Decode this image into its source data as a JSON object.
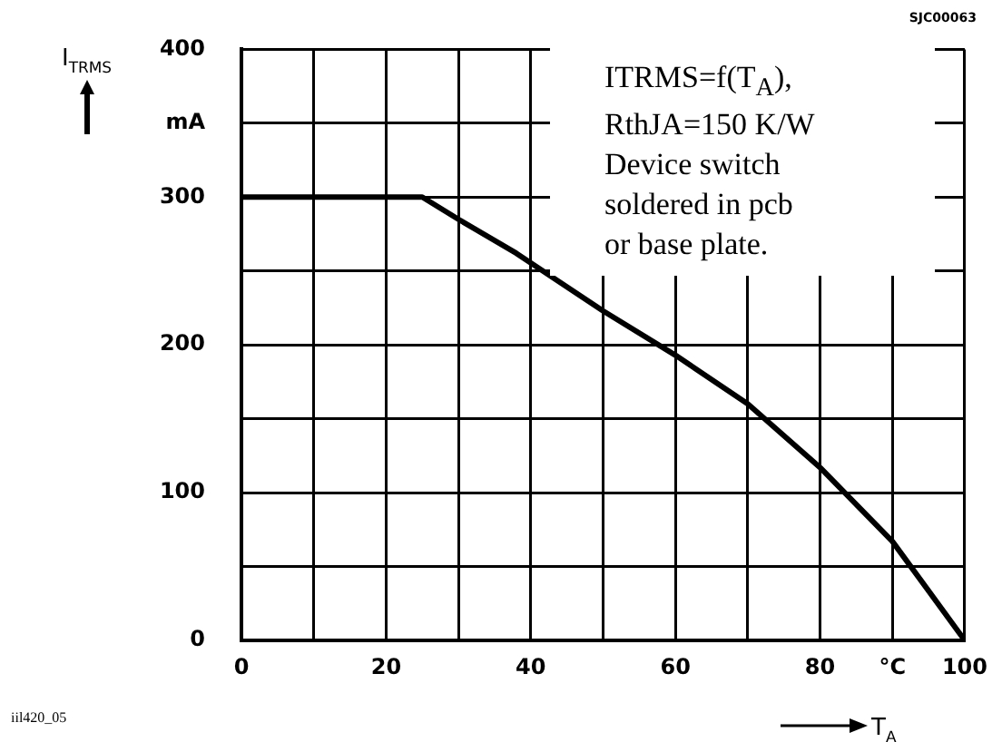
{
  "chart_data": {
    "type": "line",
    "xlabel": "T$_{A}$",
    "ylabel": "I$_{TRMS}$",
    "x": [
      0,
      25,
      30,
      38,
      50,
      60,
      70,
      80,
      90,
      100
    ],
    "series": [
      {
        "color": "#000000",
        "values": [
          300,
          300,
          285,
          262,
          223,
          193,
          160,
          117,
          67,
          0
        ]
      }
    ],
    "xlim": [
      0,
      100
    ],
    "ylim": [
      0,
      400
    ],
    "xticks": [
      0,
      {
        "value": 10,
        "label": null
      },
      20,
      {
        "value": 30,
        "label": null
      },
      40,
      {
        "value": 50,
        "label": null
      },
      60,
      {
        "value": 70,
        "label": null
      },
      80,
      {
        "value": 90,
        "label": "°C"
      },
      100
    ],
    "yticks": [
      0,
      {
        "value": 50,
        "label": null
      },
      100,
      {
        "value": 150,
        "label": null
      },
      200,
      {
        "value": 250,
        "label": null
      },
      300,
      {
        "value": 350,
        "label": "mA"
      },
      400
    ],
    "grid": true,
    "legend": false,
    "marker": "none",
    "line_style": "solid",
    "annotations": [
      "ITRMS=f(T$_{A}$),",
      "RthJA=150 K/W",
      "Device switch",
      "soldered in pcb",
      "or base plate.",
      "SJC00063",
      "iil420_05"
    ]
  }
}
